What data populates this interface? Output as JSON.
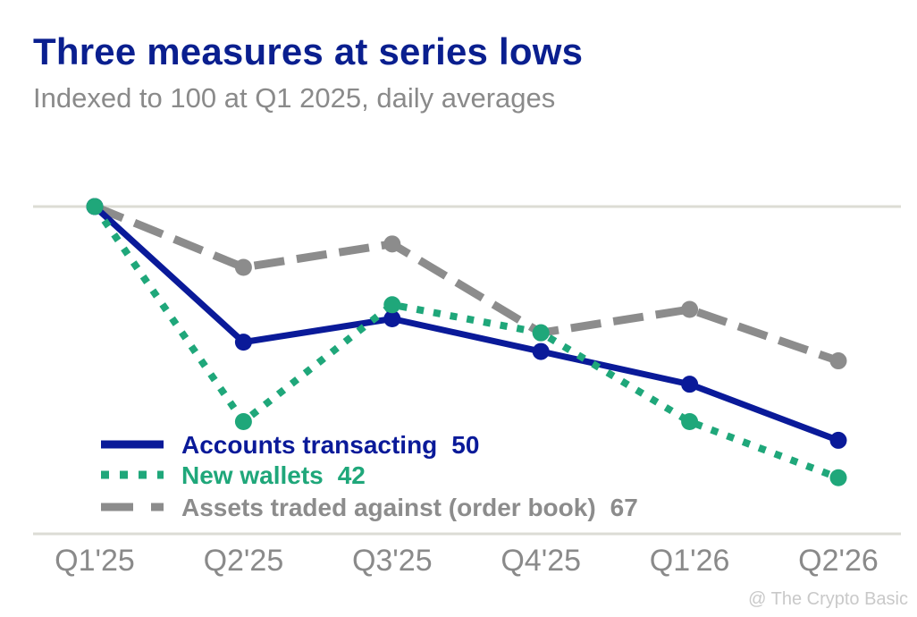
{
  "title": "Three measures at series lows",
  "subtitle": "Indexed to 100 at Q1 2025, daily averages",
  "watermark": "@ The Crypto Basic",
  "chart_data": {
    "type": "line",
    "categories": [
      "Q1'25",
      "Q2'25",
      "Q3'25",
      "Q4'25",
      "Q1'26",
      "Q2'26"
    ],
    "ylim": [
      30,
      100
    ],
    "grid": "top and bottom reference lines",
    "legend_position": "bottom-left",
    "series": [
      {
        "name": "Accounts transacting",
        "end_label": "50",
        "color": "#0a1a99",
        "dash": "solid",
        "values": [
          100,
          71,
          76,
          69,
          62,
          50
        ]
      },
      {
        "name": "New wallets",
        "end_label": "42",
        "color": "#1fa77a",
        "dash": "dotted",
        "values": [
          100,
          54,
          79,
          73,
          54,
          42
        ]
      },
      {
        "name": "Assets traded against (order book)",
        "end_label": "67",
        "color": "#8c8c8c",
        "dash": "dashed",
        "values": [
          100,
          87,
          92,
          73,
          78,
          67
        ]
      }
    ]
  }
}
